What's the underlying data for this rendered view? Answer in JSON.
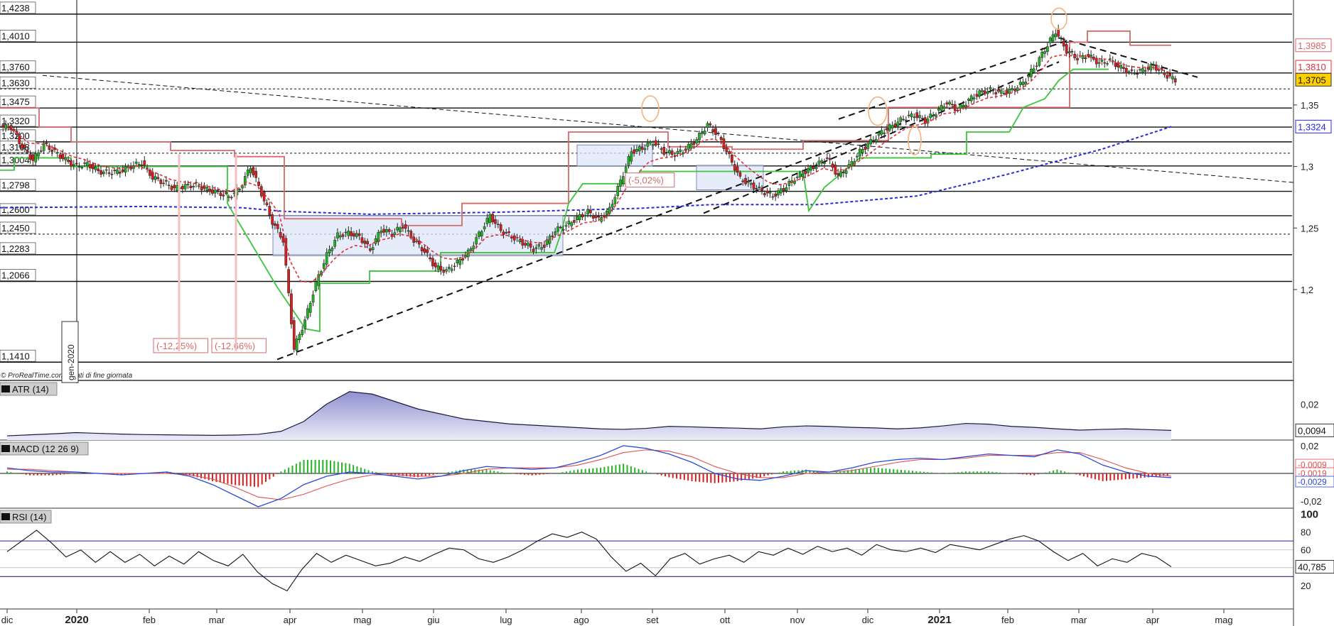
{
  "colors": {
    "bull": "#22b422",
    "bear": "#d81e1e",
    "resistance_red": "#d46a6a",
    "support_green": "#3cc43c",
    "ma_blue": "#2a2adc",
    "ma_red": "#e0303a",
    "box_fill": "#dfe6fa",
    "atr_fill": "#bfc0e6",
    "atr_line": "#1a1a40",
    "macd_line": "#2a4ad8",
    "signal_line": "#e05050",
    "rsi_line": "#111111",
    "level_line": "#111111",
    "highlight_circle": "#f4b480",
    "current_price_bg": "#ffd000"
  },
  "watermark": "© ProRealTime.com - Dati di fine giornata",
  "vertical_date_label": "gen-2020",
  "chart_data": [
    {
      "type": "candlestick",
      "panel": "price",
      "instrument": "",
      "title": "",
      "x_ticks": [
        "dic",
        "2020",
        "feb",
        "mar",
        "apr",
        "mag",
        "giu",
        "lug",
        "ago",
        "set",
        "ott",
        "nov",
        "dic",
        "2021",
        "feb",
        "mar",
        "apr",
        "mag"
      ],
      "x_tick_bold": [
        "2020",
        "2021"
      ],
      "ylim": [
        1.1325,
        1.4295
      ],
      "y_axis_ticks": [
        "1,2",
        "1,25",
        "1,3",
        "1,35"
      ],
      "y_axis_tick_values": [
        1.2,
        1.25,
        1.3,
        1.35
      ],
      "horizontal_levels": [
        {
          "label": "1,4238",
          "value": 1.4238,
          "style": "solid"
        },
        {
          "label": "1,4010",
          "value": 1.401,
          "style": "solid"
        },
        {
          "label": "1,3760",
          "value": 1.376,
          "style": "solid"
        },
        {
          "label": "1,3630",
          "value": 1.363,
          "style": "dotted"
        },
        {
          "label": "1,3475",
          "value": 1.3475,
          "style": "solid"
        },
        {
          "label": "1,3320",
          "value": 1.332,
          "style": "solid"
        },
        {
          "label": "1,3200",
          "value": 1.32,
          "style": "solid"
        },
        {
          "label": "1,3108",
          "value": 1.3108,
          "style": "dotted"
        },
        {
          "label": "1,3004",
          "value": 1.3004,
          "style": "solid"
        },
        {
          "label": "1,2798",
          "value": 1.2798,
          "style": "solid"
        },
        {
          "label": "1,2600",
          "value": 1.26,
          "style": "solid"
        },
        {
          "label": "1,2450",
          "value": 1.245,
          "style": "dotted"
        },
        {
          "label": "1,2283",
          "value": 1.2283,
          "style": "solid"
        },
        {
          "label": "1,2066",
          "value": 1.2066,
          "style": "solid"
        },
        {
          "label": "1,1410",
          "value": 1.141,
          "style": "solid"
        }
      ],
      "right_value_tags": [
        {
          "label": "1,3985",
          "value": 1.3985,
          "kind": "resistance"
        },
        {
          "label": "1,3810",
          "value": 1.381,
          "kind": "ma_red"
        },
        {
          "label": "1,3705",
          "value": 1.3705,
          "kind": "current"
        },
        {
          "label": "1,3324",
          "value": 1.3324,
          "kind": "ma_blue"
        }
      ],
      "annotations": [
        {
          "text": "(-12,25%)"
        },
        {
          "text": "(-12,66%)"
        },
        {
          "text": "(-5,02%)"
        }
      ],
      "close_series_approx": [
        1.332,
        1.316,
        1.305,
        1.318,
        1.312,
        1.305,
        1.3,
        1.302,
        1.296,
        1.295,
        1.296,
        1.3,
        1.303,
        1.291,
        1.287,
        1.282,
        1.284,
        1.285,
        1.281,
        1.279,
        1.275,
        1.282,
        1.3,
        1.278,
        1.255,
        1.24,
        1.152,
        1.175,
        1.205,
        1.228,
        1.244,
        1.246,
        1.243,
        1.232,
        1.249,
        1.245,
        1.252,
        1.24,
        1.231,
        1.218,
        1.215,
        1.222,
        1.23,
        1.245,
        1.26,
        1.248,
        1.243,
        1.238,
        1.233,
        1.236,
        1.248,
        1.252,
        1.258,
        1.263,
        1.257,
        1.265,
        1.288,
        1.312,
        1.315,
        1.32,
        1.312,
        1.31,
        1.314,
        1.322,
        1.334,
        1.325,
        1.308,
        1.29,
        1.285,
        1.28,
        1.276,
        1.282,
        1.29,
        1.296,
        1.301,
        1.307,
        1.292,
        1.3,
        1.312,
        1.32,
        1.328,
        1.333,
        1.339,
        1.342,
        1.337,
        1.344,
        1.352,
        1.346,
        1.354,
        1.36,
        1.362,
        1.36,
        1.362,
        1.368,
        1.38,
        1.395,
        1.41,
        1.394,
        1.388,
        1.39,
        1.384,
        1.386,
        1.38,
        1.376,
        1.378,
        1.382,
        1.375,
        1.37
      ],
      "overlays": [
        {
          "name": "",
          "kind": "moving_average_blue_dotted",
          "last_value": 1.3324
        },
        {
          "name": "",
          "kind": "moving_average_red_dotted",
          "last_value": 1.381
        },
        {
          "name": "",
          "kind": "resistance_trailing_red",
          "last_value": 1.3985
        },
        {
          "name": "",
          "kind": "support_trailing_green"
        }
      ]
    },
    {
      "type": "area",
      "panel": "atr",
      "title": "ATR (14)",
      "y_axis_ticks": [
        "0,02"
      ],
      "y_axis_tick_values": [
        0.02
      ],
      "ylim": [
        0.0055,
        0.0275
      ],
      "last_value_label": "0,0094",
      "values_approx": [
        0.0072,
        0.0076,
        0.008,
        0.0085,
        0.0082,
        0.0079,
        0.0077,
        0.0076,
        0.0075,
        0.0074,
        0.0075,
        0.0078,
        0.009,
        0.013,
        0.02,
        0.025,
        0.024,
        0.021,
        0.018,
        0.016,
        0.014,
        0.013,
        0.012,
        0.0115,
        0.011,
        0.0105,
        0.01,
        0.0098,
        0.0102,
        0.011,
        0.0108,
        0.0105,
        0.0103,
        0.01,
        0.0108,
        0.0112,
        0.011,
        0.0106,
        0.0104,
        0.01,
        0.0104,
        0.0112,
        0.0122,
        0.0119,
        0.011,
        0.0106,
        0.01,
        0.0095,
        0.0098,
        0.01,
        0.0097,
        0.0094
      ]
    },
    {
      "type": "line",
      "panel": "macd",
      "title": "MACD (12 26 9)",
      "y_axis_ticks": [
        "0,02",
        "-0,02"
      ],
      "y_axis_tick_values": [
        0.02,
        -0.02
      ],
      "ylim": [
        -0.0245,
        0.0225
      ],
      "last_value_labels": [
        "-0,0009",
        "-0,0019",
        "-0,0029"
      ],
      "series": [
        {
          "name": "",
          "role": "macd",
          "values_approx": [
            0.004,
            0.002,
            0.001,
            0.001,
            0.0,
            -0.001,
            0.0,
            0.001,
            -0.002,
            -0.008,
            -0.016,
            -0.024,
            -0.018,
            -0.008,
            -0.002,
            0.001,
            0.0,
            -0.002,
            -0.004,
            -0.002,
            0.002,
            0.005,
            0.004,
            0.003,
            0.004,
            0.008,
            0.013,
            0.02,
            0.018,
            0.014,
            0.008,
            0.0,
            -0.004,
            -0.005,
            -0.002,
            0.002,
            0.001,
            0.004,
            0.008,
            0.01,
            0.011,
            0.01,
            0.012,
            0.014,
            0.013,
            0.012,
            0.017,
            0.014,
            0.006,
            0.001,
            -0.002,
            -0.003
          ]
        },
        {
          "name": "",
          "role": "signal",
          "values_approx": [
            0.003,
            0.003,
            0.002,
            0.001,
            0.0,
            0.0,
            0.0,
            0.0,
            -0.001,
            -0.004,
            -0.01,
            -0.017,
            -0.019,
            -0.015,
            -0.009,
            -0.004,
            -0.001,
            -0.001,
            -0.002,
            -0.002,
            0.0,
            0.003,
            0.004,
            0.004,
            0.004,
            0.006,
            0.01,
            0.015,
            0.017,
            0.016,
            0.012,
            0.005,
            0.0,
            -0.003,
            -0.003,
            0.0,
            0.001,
            0.002,
            0.005,
            0.008,
            0.01,
            0.01,
            0.011,
            0.013,
            0.013,
            0.013,
            0.015,
            0.015,
            0.01,
            0.004,
            0.0,
            -0.002
          ]
        }
      ]
    },
    {
      "type": "line",
      "panel": "rsi",
      "title": "RSI (14)",
      "y_axis_ticks": [
        "100",
        "80",
        "60",
        "20"
      ],
      "y_axis_tick_values": [
        100,
        80,
        60,
        20
      ],
      "ylim": [
        8,
        102
      ],
      "bands": [
        70,
        30
      ],
      "last_value_label": "40,785",
      "values_approx": [
        58,
        70,
        82,
        68,
        52,
        60,
        46,
        58,
        46,
        55,
        42,
        53,
        44,
        58,
        48,
        42,
        55,
        35,
        22,
        14,
        38,
        56,
        46,
        54,
        48,
        42,
        45,
        52,
        47,
        55,
        62,
        60,
        50,
        46,
        52,
        60,
        70,
        78,
        74,
        80,
        72,
        52,
        36,
        45,
        31,
        50,
        56,
        44,
        50,
        54,
        46,
        58,
        54,
        62,
        55,
        64,
        58,
        62,
        54,
        66,
        60,
        58,
        62,
        57,
        66,
        63,
        60,
        66,
        72,
        76,
        70,
        58,
        48,
        56,
        42,
        50,
        46,
        56,
        52,
        41
      ]
    }
  ]
}
